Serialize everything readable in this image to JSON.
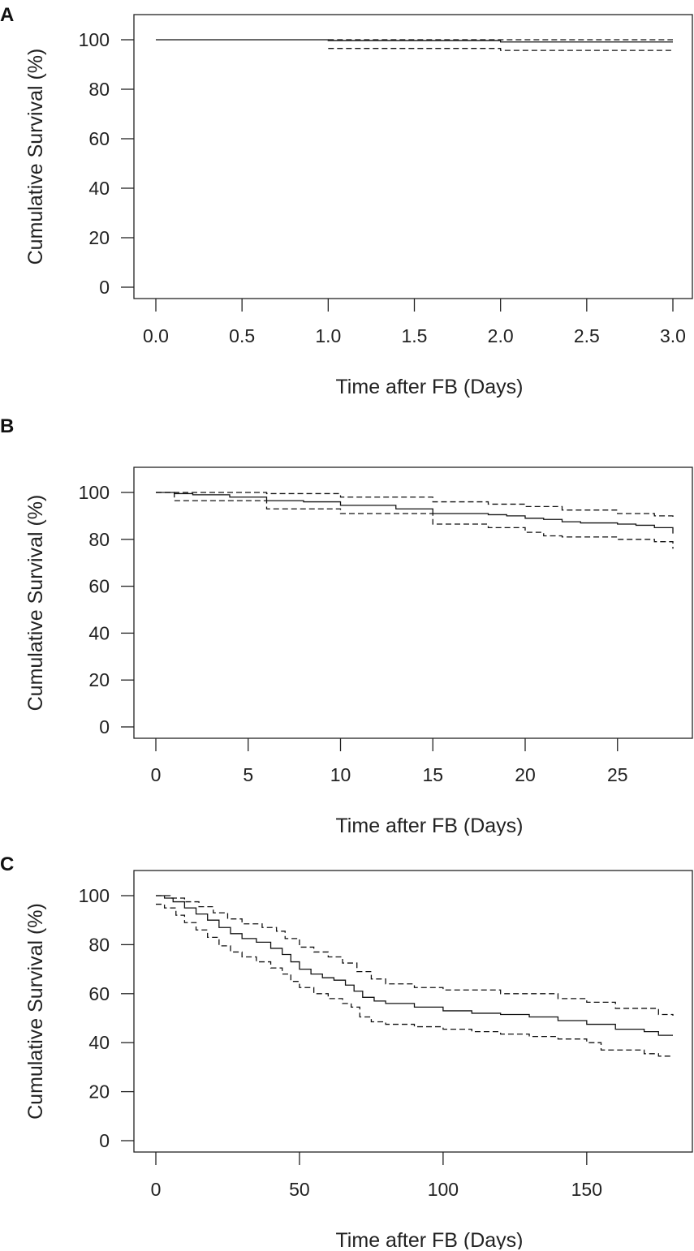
{
  "chart_data": [
    {
      "type": "line",
      "panel_label": "A",
      "xlabel": "Time after FB (Days)",
      "ylabel": "Cumulative Survival (%)",
      "xlim": [
        0,
        3
      ],
      "ylim": [
        0,
        100
      ],
      "xticks": [
        0,
        0.5,
        1,
        1.5,
        2,
        2.5,
        3
      ],
      "xtick_labels": [
        "0.0",
        "0.5",
        "1.0",
        "1.5",
        "2.0",
        "2.5",
        "3.0"
      ],
      "yticks": [
        0,
        20,
        40,
        60,
        80,
        100
      ],
      "ytick_labels": [
        "0",
        "20",
        "40",
        "60",
        "80",
        "100"
      ],
      "series": [
        {
          "name": "survival",
          "style": "solid",
          "x": [
            0,
            1,
            2,
            3
          ],
          "y": [
            100,
            99.7,
            99.1,
            99.1
          ]
        },
        {
          "name": "upper-ci",
          "style": "dashed",
          "x": [
            1,
            2,
            3
          ],
          "y": [
            100,
            100,
            100
          ]
        },
        {
          "name": "lower-ci",
          "style": "dashed",
          "x": [
            1,
            2,
            3
          ],
          "y": [
            96.5,
            95.7,
            95.7
          ]
        }
      ]
    },
    {
      "type": "line",
      "panel_label": "B",
      "xlabel": "Time after FB (Days)",
      "ylabel": "Cumulative Survival (%)",
      "xlim": [
        0,
        28
      ],
      "ylim": [
        0,
        100
      ],
      "xticks": [
        0,
        5,
        10,
        15,
        20,
        25
      ],
      "xtick_labels": [
        "0",
        "5",
        "10",
        "15",
        "20",
        "25"
      ],
      "yticks": [
        0,
        20,
        40,
        60,
        80,
        100
      ],
      "ytick_labels": [
        "0",
        "20",
        "40",
        "60",
        "80",
        "100"
      ],
      "series": [
        {
          "name": "survival",
          "style": "solid",
          "x": [
            0,
            1,
            2,
            4,
            6,
            8,
            10,
            13,
            15,
            18,
            19,
            20,
            21,
            22,
            23,
            25,
            26,
            27,
            28
          ],
          "y": [
            100,
            99.5,
            99,
            98,
            96.5,
            96,
            94.5,
            93,
            91,
            90.5,
            90,
            89,
            88.5,
            87.5,
            87,
            86.5,
            86,
            85,
            82.5
          ]
        },
        {
          "name": "upper-ci",
          "style": "dashed",
          "x": [
            0,
            4,
            6,
            10,
            15,
            18,
            20,
            22,
            25,
            27,
            28
          ],
          "y": [
            100,
            100,
            99.5,
            98,
            96,
            95,
            94,
            92.5,
            91,
            90,
            88.5
          ]
        },
        {
          "name": "lower-ci",
          "style": "dashed",
          "x": [
            0,
            1,
            6,
            10,
            15,
            18,
            20,
            21,
            22,
            25,
            27,
            28
          ],
          "y": [
            100,
            96.5,
            93,
            91,
            86.5,
            85,
            83,
            81.5,
            81,
            80,
            79,
            76
          ]
        }
      ]
    },
    {
      "type": "line",
      "panel_label": "C",
      "xlabel": "Time after FB (Days)",
      "ylabel": "Cumulative Survival (%)",
      "xlim": [
        0,
        180
      ],
      "ylim": [
        0,
        100
      ],
      "xticks": [
        0,
        50,
        100,
        150
      ],
      "xtick_labels": [
        "0",
        "50",
        "100",
        "150"
      ],
      "yticks": [
        0,
        20,
        40,
        60,
        80,
        100
      ],
      "ytick_labels": [
        "0",
        "20",
        "40",
        "60",
        "80",
        "100"
      ],
      "series": [
        {
          "name": "survival",
          "style": "solid",
          "x": [
            0,
            3,
            6,
            10,
            14,
            18,
            22,
            26,
            30,
            35,
            40,
            44,
            47,
            50,
            54,
            58,
            62,
            66,
            69,
            72,
            76,
            80,
            90,
            100,
            110,
            120,
            130,
            140,
            150,
            160,
            170,
            175,
            180
          ],
          "y": [
            100,
            99,
            97.5,
            95,
            92.5,
            90,
            87,
            84.5,
            82.5,
            81,
            78.5,
            76,
            73,
            70,
            68,
            66.5,
            65.5,
            63.5,
            61,
            58.5,
            57,
            56,
            54.5,
            53,
            52,
            51.5,
            50.5,
            49,
            47.5,
            45.5,
            44.5,
            43,
            43
          ]
        },
        {
          "name": "upper-ci",
          "style": "dashed",
          "x": [
            0,
            5,
            10,
            15,
            20,
            25,
            30,
            37,
            42,
            45,
            50,
            55,
            60,
            65,
            70,
            75,
            80,
            90,
            100,
            120,
            140,
            150,
            160,
            175,
            180
          ],
          "y": [
            100,
            99,
            97.5,
            95.5,
            93,
            90.5,
            88.5,
            87,
            85.5,
            82.5,
            79,
            77,
            75,
            72.5,
            69,
            66,
            64,
            62.5,
            61.5,
            60,
            58,
            56.5,
            54,
            51.5,
            51
          ]
        },
        {
          "name": "lower-ci",
          "style": "dashed",
          "x": [
            0,
            3,
            7,
            10,
            14,
            18,
            22,
            26,
            30,
            35,
            40,
            44,
            47,
            50,
            55,
            60,
            65,
            68,
            71,
            75,
            80,
            90,
            100,
            110,
            120,
            130,
            140,
            150,
            155,
            170,
            175,
            180
          ],
          "y": [
            96.5,
            95,
            92,
            89,
            86,
            83,
            79.5,
            77,
            75,
            73,
            70.5,
            68,
            65,
            62.5,
            60,
            58,
            56,
            54.5,
            50.5,
            48.5,
            47.5,
            46.5,
            45.5,
            44.5,
            43.5,
            42.5,
            41.5,
            40,
            37,
            35.5,
            34.5,
            34.5
          ]
        }
      ]
    }
  ]
}
